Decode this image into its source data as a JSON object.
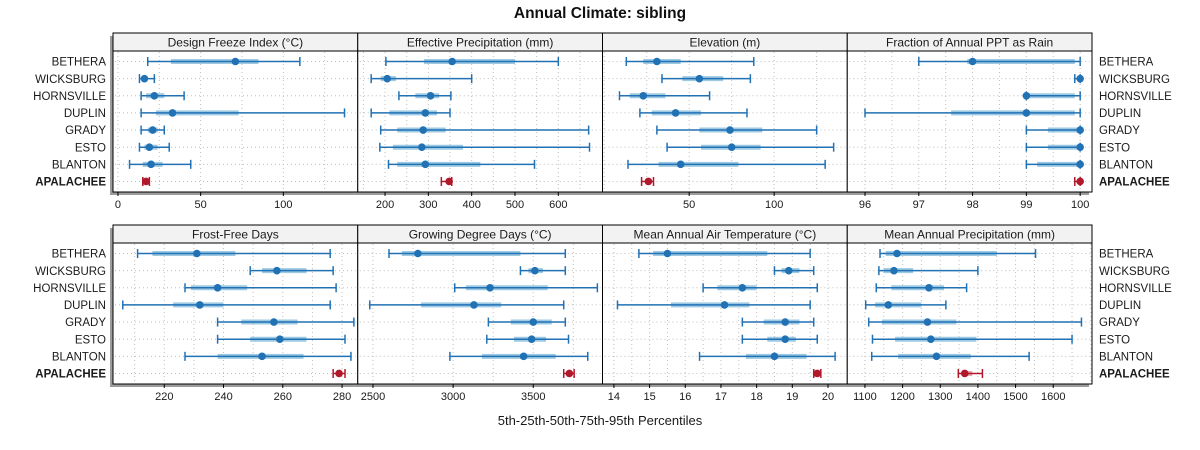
{
  "colors": {
    "primary": "#2171b5",
    "primary_band": "#9ec9e2",
    "highlight": "#b2182b",
    "highlight_band": "#e5a9b0",
    "strip_bg": "#f2f2f2",
    "panel_bg": "#ffffff",
    "panel_border": "#000000",
    "grid": "#bdbdbd",
    "shadow": "#9c9c9c",
    "text": "#1a1a1a"
  },
  "chart_data": {
    "type": "scatter",
    "variant": "percentile-dot-whisker-trellis",
    "title": "Annual Climate: sibling",
    "xlabel": "5th-25th-50th-75th-95th Percentiles",
    "grid": "dotted",
    "legend_position": "none",
    "categories": [
      "BETHERA",
      "WICKSBURG",
      "HORNSVILLE",
      "DUPLIN",
      "GRADY",
      "ESTO",
      "BLANTON",
      "APALACHEE"
    ],
    "highlight": "APALACHEE",
    "percentile_order": [
      5,
      25,
      50,
      75,
      95
    ],
    "panels": [
      {
        "title": "Design Freeze Index (°C)",
        "ticks": [
          0,
          50,
          100
        ],
        "grid_ticks": [
          0,
          25,
          50,
          75,
          100,
          125
        ],
        "axis_range": [
          -3,
          145
        ],
        "values": {
          "BETHERA": [
            18,
            32,
            71,
            85,
            110
          ],
          "WICKSBURG": [
            13,
            15,
            16,
            18,
            22
          ],
          "HORNSVILLE": [
            14,
            17,
            22,
            28,
            40
          ],
          "DUPLIN": [
            14,
            23,
            33,
            73,
            137
          ],
          "GRADY": [
            14,
            18,
            21,
            24,
            28
          ],
          "ESTO": [
            13,
            16,
            19,
            24,
            31
          ],
          "BLANTON": [
            7,
            15,
            20,
            27,
            44
          ],
          "APALACHEE": [
            15,
            16,
            17,
            18,
            19
          ]
        }
      },
      {
        "title": "Effective Precipitation (mm)",
        "ticks": [
          200,
          300,
          400,
          500,
          600
        ],
        "grid_ticks": [
          150,
          200,
          250,
          300,
          350,
          400,
          450,
          500,
          550,
          600,
          650,
          700
        ],
        "axis_range": [
          137,
          702
        ],
        "values": {
          "BETHERA": [
            202,
            290,
            355,
            500,
            600
          ],
          "WICKSBURG": [
            168,
            190,
            205,
            225,
            400
          ],
          "HORNSVILLE": [
            232,
            270,
            305,
            325,
            352
          ],
          "DUPLIN": [
            168,
            210,
            293,
            320,
            350
          ],
          "GRADY": [
            190,
            228,
            288,
            340,
            670
          ],
          "ESTO": [
            188,
            218,
            285,
            380,
            672
          ],
          "BLANTON": [
            208,
            228,
            293,
            420,
            545
          ],
          "APALACHEE": [
            330,
            342,
            348,
            351,
            354
          ]
        }
      },
      {
        "title": "Elevation (m)",
        "ticks": [
          50,
          100
        ],
        "grid_ticks": [
          0,
          25,
          50,
          75,
          100,
          125
        ],
        "axis_range": [
          -1,
          143
        ],
        "values": {
          "BETHERA": [
            13,
            23,
            31,
            45,
            88
          ],
          "WICKSBURG": [
            34,
            46,
            56,
            70,
            86
          ],
          "HORNSVILLE": [
            9,
            15,
            23,
            36,
            62
          ],
          "DUPLIN": [
            21,
            28,
            42,
            57,
            84
          ],
          "GRADY": [
            31,
            56,
            74,
            93,
            125
          ],
          "ESTO": [
            37,
            57,
            75,
            92,
            135
          ],
          "BLANTON": [
            14,
            32,
            45,
            79,
            130
          ],
          "APALACHEE": [
            22,
            24,
            26,
            27,
            29
          ]
        }
      },
      {
        "title": "Fraction of Annual PPT as Rain",
        "ticks": [
          96,
          97,
          98,
          99,
          100
        ],
        "grid_ticks": [
          96,
          96.5,
          97,
          97.5,
          98,
          98.5,
          99,
          99.5,
          100
        ],
        "axis_range": [
          95.67,
          100.22
        ],
        "values": {
          "BETHERA": [
            97,
            97.9,
            98,
            99.9,
            100
          ],
          "WICKSBURG": [
            99.9,
            99.95,
            100,
            100,
            100
          ],
          "HORNSVILLE": [
            99,
            99,
            99,
            99.9,
            100
          ],
          "DUPLIN": [
            96,
            97.6,
            99,
            99.9,
            100
          ],
          "GRADY": [
            99,
            99.4,
            100,
            100,
            100
          ],
          "ESTO": [
            99,
            99.4,
            100,
            100,
            100
          ],
          "BLANTON": [
            99,
            99.2,
            100,
            100,
            100
          ],
          "APALACHEE": [
            99.9,
            99.95,
            100,
            100,
            100
          ]
        }
      },
      {
        "title": "Frost-Free Days",
        "ticks": [
          220,
          240,
          260,
          280
        ],
        "grid_ticks": [
          210,
          220,
          230,
          240,
          250,
          260,
          270,
          280
        ],
        "axis_range": [
          202.7,
          285.3
        ],
        "values": {
          "BETHERA": [
            211,
            216,
            231,
            244,
            276
          ],
          "WICKSBURG": [
            249,
            253,
            258,
            268,
            277
          ],
          "HORNSVILLE": [
            227,
            229,
            238,
            248,
            278
          ],
          "DUPLIN": [
            206,
            223,
            232,
            240,
            276
          ],
          "GRADY": [
            238,
            246,
            257,
            265,
            284
          ],
          "ESTO": [
            238,
            249,
            259,
            268,
            281
          ],
          "BLANTON": [
            227,
            238,
            253,
            267,
            283
          ],
          "APALACHEE": [
            277,
            278,
            279,
            280,
            281
          ]
        }
      },
      {
        "title": "Growing Degree Days (°C)",
        "ticks": [
          2500,
          3000,
          3500
        ],
        "grid_ticks": [
          2500,
          2750,
          3000,
          3250,
          3500,
          3750
        ],
        "axis_range": [
          2405,
          3932
        ],
        "values": {
          "BETHERA": [
            2600,
            2680,
            2780,
            3420,
            3700
          ],
          "WICKSBURG": [
            3420,
            3470,
            3510,
            3560,
            3700
          ],
          "HORNSVILLE": [
            3010,
            3080,
            3230,
            3590,
            3900
          ],
          "DUPLIN": [
            2480,
            2800,
            3130,
            3300,
            3690
          ],
          "GRADY": [
            3220,
            3360,
            3500,
            3615,
            3700
          ],
          "ESTO": [
            3210,
            3380,
            3490,
            3580,
            3720
          ],
          "BLANTON": [
            2980,
            3180,
            3440,
            3640,
            3840
          ],
          "APALACHEE": [
            3690,
            3710,
            3725,
            3740,
            3755
          ]
        }
      },
      {
        "title": "Mean Annual Air Temperature (°C)",
        "ticks": [
          14,
          15,
          16,
          17,
          18,
          19,
          20
        ],
        "grid_ticks": [
          14,
          14.5,
          15,
          15.5,
          16,
          16.5,
          17,
          17.5,
          18,
          18.5,
          19,
          19.5,
          20
        ],
        "axis_range": [
          13.68,
          20.54
        ],
        "values": {
          "BETHERA": [
            14.7,
            15.1,
            15.5,
            18.3,
            19.5
          ],
          "WICKSBURG": [
            18.5,
            18.7,
            18.9,
            19.2,
            19.6
          ],
          "HORNSVILLE": [
            16.5,
            16.9,
            17.6,
            18.0,
            19.7
          ],
          "DUPLIN": [
            14.1,
            15.6,
            17.1,
            17.8,
            19.5
          ],
          "GRADY": [
            17.6,
            18.2,
            18.8,
            19.2,
            19.6
          ],
          "ESTO": [
            17.6,
            18.3,
            18.8,
            19.1,
            19.7
          ],
          "BLANTON": [
            16.4,
            17.7,
            18.5,
            19.4,
            20.2
          ],
          "APALACHEE": [
            19.6,
            19.65,
            19.7,
            19.75,
            19.8
          ]
        }
      },
      {
        "title": "Mean Annual Precipitation (mm)",
        "ticks": [
          1100,
          1200,
          1300,
          1400,
          1500,
          1600
        ],
        "grid_ticks": [
          1100,
          1150,
          1200,
          1250,
          1300,
          1350,
          1400,
          1450,
          1500,
          1550,
          1600,
          1650,
          1700
        ],
        "axis_range": [
          1053,
          1703
        ],
        "values": {
          "BETHERA": [
            1140,
            1155,
            1185,
            1450,
            1553
          ],
          "WICKSBURG": [
            1137,
            1150,
            1177,
            1228,
            1400
          ],
          "HORNSVILLE": [
            1130,
            1170,
            1270,
            1310,
            1370
          ],
          "DUPLIN": [
            1102,
            1127,
            1162,
            1250,
            1315
          ],
          "GRADY": [
            1110,
            1145,
            1266,
            1343,
            1675
          ],
          "ESTO": [
            1120,
            1180,
            1275,
            1396,
            1650
          ],
          "BLANTON": [
            1118,
            1188,
            1290,
            1381,
            1536
          ],
          "APALACHEE": [
            1348,
            1358,
            1365,
            1385,
            1412
          ]
        }
      }
    ]
  }
}
